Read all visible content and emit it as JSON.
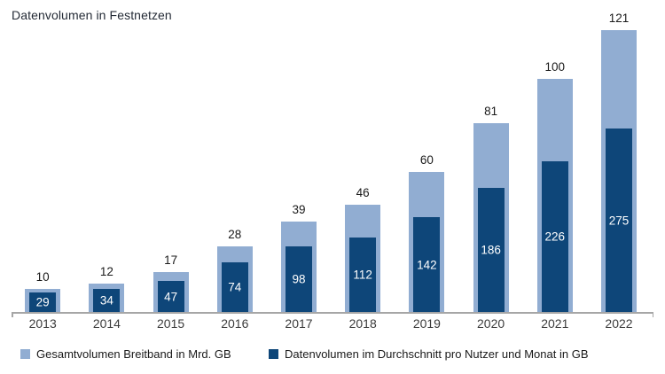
{
  "title": "Datenvolumen in Festnetzen",
  "colors": {
    "light_blue": "#91add2",
    "dark_blue": "#0e4679",
    "axis_gray": "#a6a6a6",
    "value_label": "#1a1a1a",
    "year_label": "#3b3b3b",
    "title_color": "#242b36"
  },
  "legend": [
    {
      "label": "Gesamtvolumen Breitband in Mrd. GB",
      "color_key": "light_blue"
    },
    {
      "label": "Datenvolumen im Durchschnitt pro Nutzer und Monat in GB",
      "color_key": "dark_blue"
    }
  ],
  "chart_data": {
    "type": "bar",
    "subtype": "overlay-bars-dual-scale",
    "title": "Datenvolumen in Festnetzen",
    "categories": [
      "2013",
      "2014",
      "2015",
      "2016",
      "2017",
      "2018",
      "2019",
      "2020",
      "2021",
      "2022"
    ],
    "series": [
      {
        "name": "Gesamtvolumen Breitband in Mrd. GB",
        "color_key": "light_blue",
        "value_label_position": "above-bar-black",
        "values": [
          10,
          12,
          17,
          28,
          39,
          46,
          60,
          81,
          100,
          121
        ]
      },
      {
        "name": "Datenvolumen im Durchschnitt pro Nutzer und Monat in GB",
        "color_key": "dark_blue",
        "value_label_position": "inside-bar-white",
        "values": [
          29,
          34,
          47,
          74,
          98,
          112,
          142,
          186,
          226,
          275
        ]
      }
    ],
    "xlabel": "",
    "ylabel": "",
    "y_axis_shown": false,
    "grid": false,
    "legend_position": "bottom"
  }
}
